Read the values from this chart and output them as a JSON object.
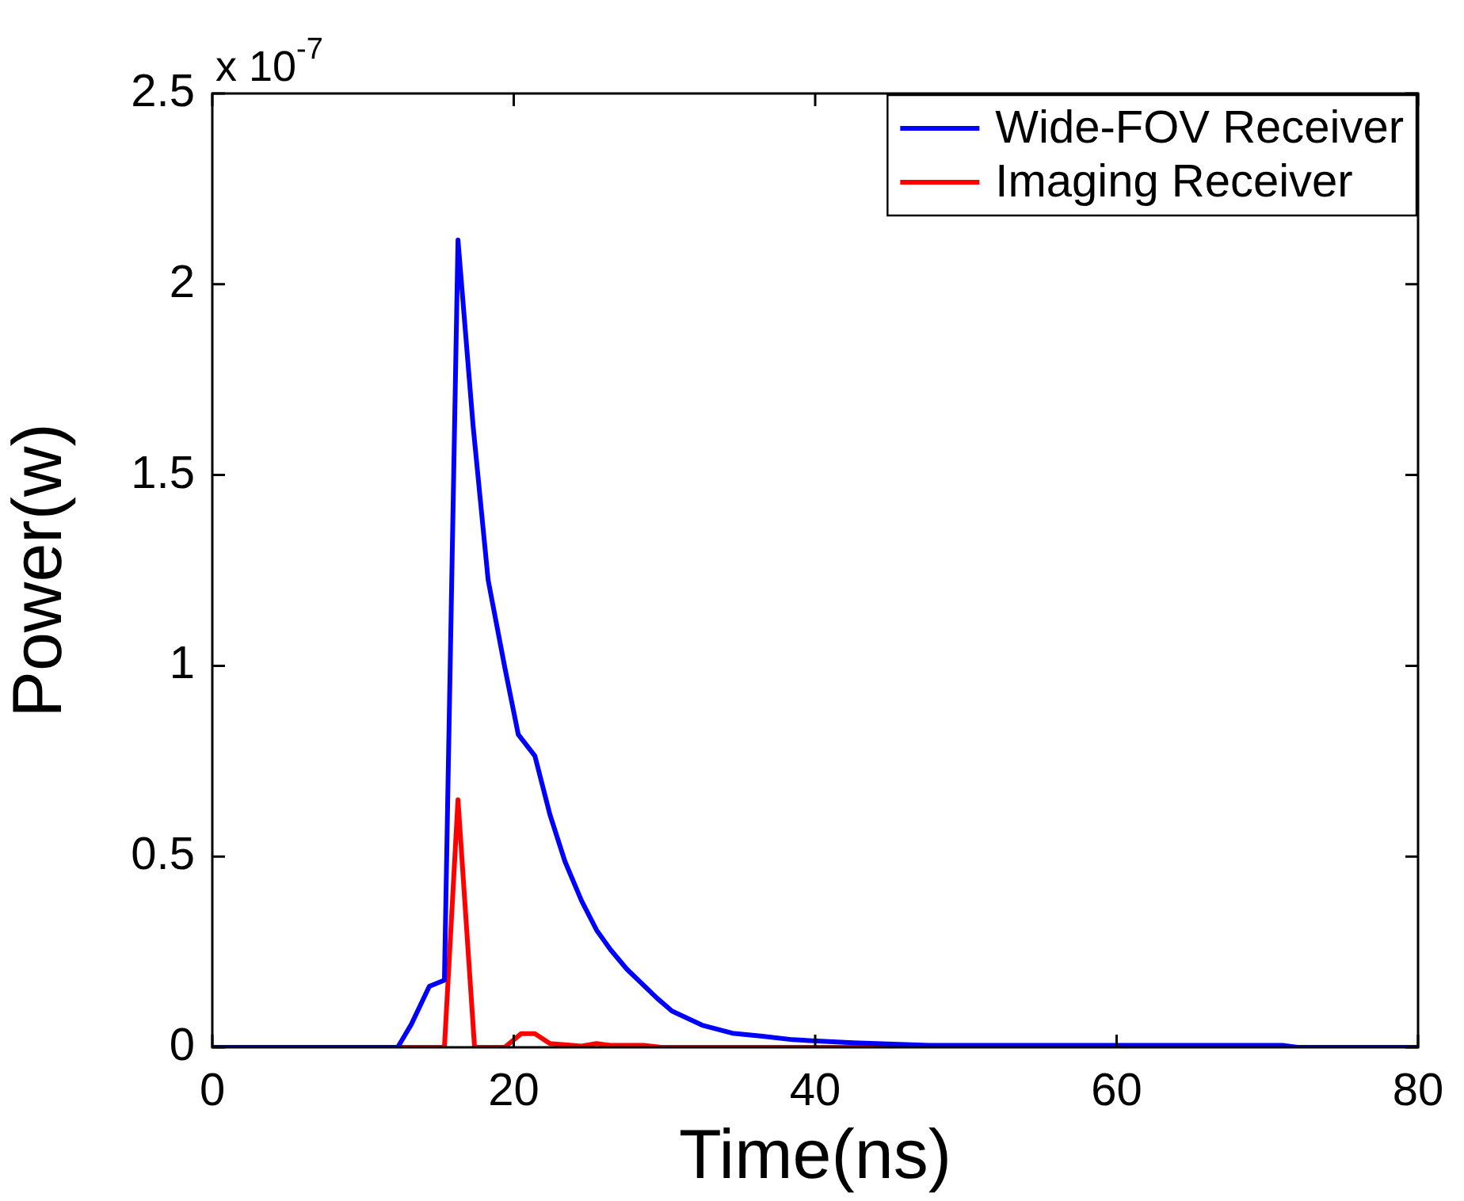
{
  "chart_data": {
    "type": "line",
    "xlabel": "Time(ns)",
    "ylabel": "Power(w)",
    "annotations": [
      "x 10$^{-7}$"
    ],
    "xlim": [
      0,
      80
    ],
    "xticks": [
      0,
      20,
      40,
      60,
      80
    ],
    "ylim": [
      0,
      2.5
    ],
    "yticks": [
      0,
      0.5,
      1,
      1.5,
      2,
      2.5
    ],
    "grid": false,
    "legend": "top right",
    "marker": "none",
    "line_style": "solid",
    "series": [
      {
        "name": "Wide-FOV Receiver",
        "color": "#0000ff",
        "x": [
          0,
          12.3,
          13.2,
          14.4,
          15.4,
          16.3,
          17.3,
          18.3,
          19.4,
          20.3,
          21.4,
          22.4,
          23.4,
          24.5,
          25.5,
          26.4,
          27.5,
          29.5,
          30.5,
          32.5,
          34.5,
          36.5,
          38.5,
          42.5,
          47.5,
          71,
          72,
          80
        ],
        "values": [
          0,
          0,
          0.06,
          0.16,
          0.176,
          2.116,
          1.63,
          1.225,
          0.997,
          0.82,
          0.764,
          0.61,
          0.487,
          0.384,
          0.307,
          0.257,
          0.205,
          0.129,
          0.095,
          0.058,
          0.037,
          0.029,
          0.02,
          0.012,
          0.005,
          0.005,
          0,
          0
        ]
      },
      {
        "name": "Imaging Receiver",
        "color": "#ff0000",
        "x": [
          0,
          15.4,
          16.3,
          17.4,
          19.4,
          20.5,
          21.4,
          22.4,
          24.5,
          25.5,
          26.4,
          28.6,
          29.8,
          80
        ],
        "values": [
          0,
          0,
          0.649,
          0,
          0,
          0.036,
          0.036,
          0.01,
          0.003,
          0.01,
          0.005,
          0.005,
          0,
          0
        ]
      }
    ]
  }
}
